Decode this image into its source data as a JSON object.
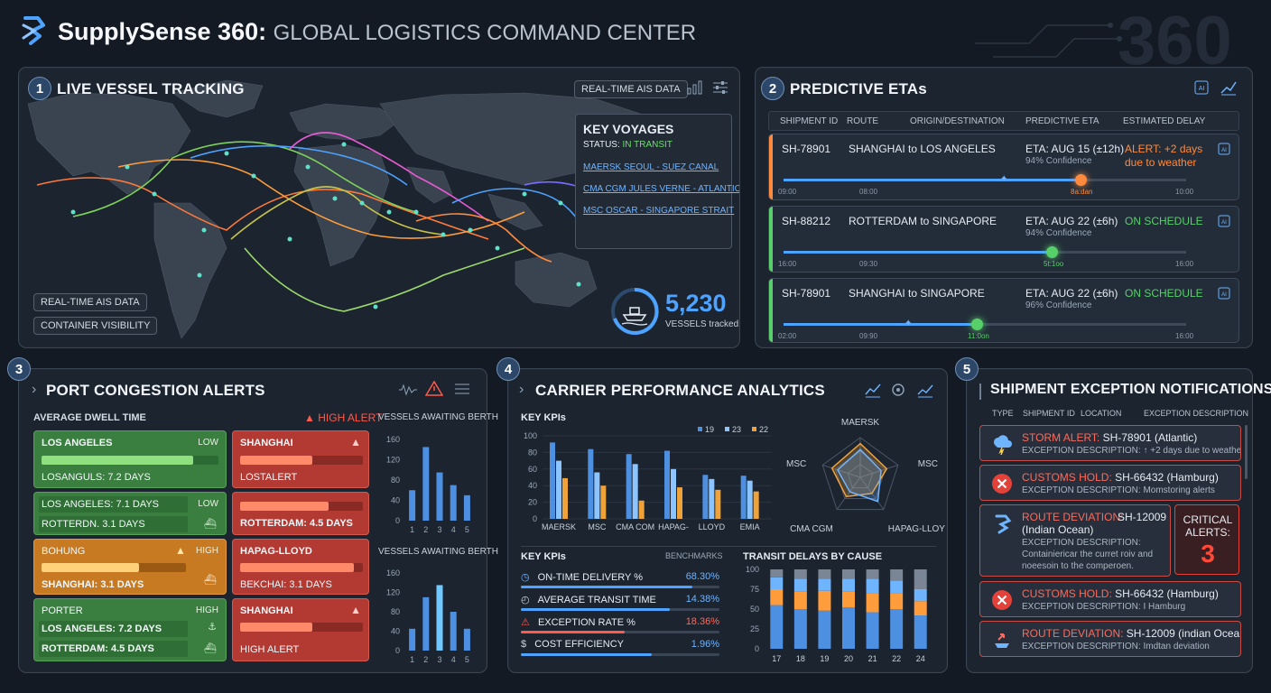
{
  "header": {
    "brand": "SupplySense 360:",
    "subtitle": "GLOBAL LOGISTICS COMMAND CENTER",
    "watermark": "360",
    "accent": "#4da3ff"
  },
  "vessel_tracking": {
    "number": "1",
    "title": "LIVE VESSEL TRACKING",
    "ais_tag": "REAL-TIME AIS DATA",
    "key_voyages": {
      "title": "KEY VOYAGES",
      "status_label": "STATUS:",
      "status_value": "IN TRANSIT",
      "voyages": [
        "MAERSK SEOUL - SUEZ CANAL",
        "CMA CGM JULES VERNE - ATLANTIC",
        "MSC OSCAR - SINGAPORE STRAIT"
      ]
    },
    "tags": [
      "REAL-TIME AIS DATA",
      "CONTAINER VISIBILITY"
    ],
    "vessels_count": "5,230",
    "vessels_label": "VESSELS tracked"
  },
  "predictive_etas": {
    "number": "2",
    "title": "PREDICTIVE ETAs",
    "columns": [
      "SHIPMENT ID",
      "ROUTE",
      "ORIGIN/DESTINATION",
      "PREDICTIVE ETA",
      "ESTIMATED DELAY"
    ],
    "rows": [
      {
        "id": "SH-78901",
        "route": "SHANGHAI to LOS ANGELES",
        "eta": "ETA: AUG 15 (±12h)",
        "confidence": "94% Confidence",
        "delay1": "ALERT: +2 days",
        "delay2": "due to weather",
        "status_color": "#ff8a3d",
        "ticks": [
          "09:00",
          "08:00",
          "8a:dan",
          "10:00"
        ],
        "progress": 0.62
      },
      {
        "id": "SH-88212",
        "route": "ROTTERDAM to SINGAPORE",
        "eta": "ETA: AUG 22 (±6h)",
        "confidence": "94% Confidence",
        "delay1": "ON SCHEDULE",
        "delay2": "",
        "status_color": "#58d06a",
        "ticks": [
          "16:00",
          "09:30",
          "5t:1oo",
          "16:00"
        ],
        "progress": 0.66
      },
      {
        "id": "SH-78901",
        "route": "SHANGHAI to SINGAPORE",
        "eta": "ETA: AUG 22 (±6h)",
        "confidence": "96% Confidence",
        "delay1": "ON SCHEDULE",
        "delay2": "",
        "status_color": "#58d06a",
        "ticks": [
          "02:00",
          "09:90",
          "11:0on",
          "16:00"
        ],
        "progress": 0.48
      }
    ]
  },
  "port_congestion": {
    "number": "3",
    "title": "PORT CONGESTION ALERTS",
    "dwell_label": "AVERAGE DWELL TIME",
    "high_alert": "HIGH ALERT",
    "tiles": [
      {
        "name": "LOS ANGELES",
        "level": "LOW",
        "line": "LOSANGULS: 7.2 DAYS",
        "kind": "g"
      },
      {
        "name": "SHANGHAI",
        "level": "",
        "line": "LOSTALERT",
        "kind": "r"
      },
      {
        "name": "LOS ANGELES: 7.1 DAYS",
        "level": "LOW",
        "line": "ROTTERDN. 3.1 DAYS",
        "kind": "g"
      },
      {
        "name": "",
        "level": "",
        "line": "ROTTERDAM: 4.5 DAYS",
        "kind": "r"
      },
      {
        "name": "BOHUNG",
        "level": "HIGH",
        "line": "SHANGHAI: 3.1 DAYS",
        "kind": "o"
      },
      {
        "name": "HAPAG-LLOYD",
        "level": "",
        "line": "BEKCHAI: 3.1 DAYS",
        "kind": "r"
      },
      {
        "name": "PORTER",
        "level": "HIGH",
        "line": "LOS ANGELES: 7.2 DAYS",
        "line2": "ROTTERDAM: 4.5 DAYS",
        "kind": "g"
      },
      {
        "name": "SHANGHAI",
        "level": "",
        "line": "HIGH ALERT",
        "kind": "r"
      }
    ],
    "berth_title": "VESSELS AWAITING BERTH",
    "berth_y_ticks": [
      "160",
      "120",
      "80",
      "40",
      "0"
    ],
    "berth_x": [
      "1",
      "2",
      "3",
      "4",
      "5"
    ]
  },
  "carrier_performance": {
    "number": "4",
    "title": "CARRIER PERFORMANCE ANALYTICS",
    "key_kpis": "KEY KPIs",
    "legend": [
      "19",
      "23",
      "22"
    ],
    "radar_labels": [
      "MAERSK",
      "MSC",
      "HAPAG-LLOYD",
      "CMA CGM",
      "MSC"
    ],
    "benchmarks": "BENCHMARKS",
    "kpis": [
      {
        "label": "ON-TIME DELIVERY %",
        "value": "68.30%",
        "color": "#4da3ff",
        "frac": 0.86
      },
      {
        "label": "AVERAGE TRANSIT TIME",
        "value": "14.38%",
        "color": "#4da3ff",
        "frac": 0.75
      },
      {
        "label": "EXCEPTION RATE %",
        "value": "18.36%",
        "color": "#ff5a4a",
        "frac": 0.52
      },
      {
        "label": "COST EFFICIENCY",
        "value": "1.96%",
        "color": "#4da3ff",
        "frac": 0.66
      }
    ],
    "delays_title": "TRANSIT DELAYS BY CAUSE",
    "delay_y_ticks": [
      "100",
      "75",
      "50",
      "25",
      "0"
    ],
    "delay_x": [
      "17",
      "18",
      "19",
      "20",
      "21",
      "22",
      "24"
    ]
  },
  "exceptions": {
    "number": "5",
    "title": "SHIPMENT EXCEPTION NOTIFICATIONS",
    "columns": [
      "TYPE",
      "SHIPMENT ID",
      "LOCATION",
      "EXCEPTION DESCRIPTION"
    ],
    "items": [
      {
        "type": "STORM ALERT:",
        "rest": "SH-78901 (Atlantic)",
        "rest2": "",
        "desc": "EXCEPTION DESCRIPTION: ↑ +2 days due to weather",
        "desc2": "",
        "icon": "storm"
      },
      {
        "type": "CUSTOMS HOLD:",
        "rest": "SH-66432 (Hamburg)",
        "rest2": "",
        "desc": "EXCEPTION DESCRIPTION: Momstoring alerts",
        "desc2": "",
        "icon": "x"
      },
      {
        "type": "ROUTE DEVIATION:",
        "rest": "SH-12009",
        "rest2": "(Indian Ocean)",
        "desc": "EXCEPTION DESCRIPTION:",
        "desc2": "Containiericar the curret roiv and",
        "desc3": "noeesoin to the comperoen.",
        "icon": "route"
      },
      {
        "type": "CUSTOMS HOLD:",
        "rest": "SH-66432 (Hamburg)",
        "rest2": "",
        "desc": "EXCEPTION DESCRIPTION: I Hamburg",
        "desc2": "",
        "icon": "x"
      },
      {
        "type": "ROUTE DEVIATION:",
        "rest": "SH-12009 (indian Ocean)",
        "rest2": "",
        "desc": "EXCEPTION DESCRIPTION: Imdtan deviation",
        "desc2": "",
        "icon": "ship"
      }
    ],
    "critical_label": "CRITICAL ALERTS:",
    "critical_count": "3"
  },
  "chart_data": [
    {
      "type": "bar",
      "title": "VESSELS AWAITING BERTH",
      "categories": [
        "1",
        "2",
        "3",
        "4",
        "5"
      ],
      "values": [
        60,
        145,
        95,
        70,
        50
      ],
      "ylim": [
        0,
        160
      ]
    },
    {
      "type": "bar",
      "title": "VESSELS AWAITING BERTH",
      "categories": [
        "1",
        "2",
        "3",
        "4",
        "5"
      ],
      "values": [
        45,
        110,
        135,
        80,
        45
      ],
      "ylim": [
        0,
        160
      ]
    },
    {
      "type": "bar",
      "title": "KEY KPIs",
      "categories": [
        "MAERSK",
        "MSC",
        "CMA COM",
        "HAPAG-",
        "LLOYD",
        "EMIA"
      ],
      "series": [
        {
          "name": "19",
          "values": [
            92,
            84,
            78,
            82,
            53,
            52
          ]
        },
        {
          "name": "23",
          "values": [
            70,
            56,
            66,
            60,
            48,
            46
          ]
        },
        {
          "name": "22",
          "values": [
            49,
            40,
            22,
            38,
            35,
            33
          ]
        }
      ],
      "ylim": [
        0,
        100
      ]
    },
    {
      "type": "bar",
      "title": "TRANSIT DELAYS BY CAUSE",
      "categories": [
        "17",
        "18",
        "19",
        "20",
        "21",
        "22",
        "24"
      ],
      "series": [
        {
          "name": "",
          "values": [
            55,
            50,
            48,
            52,
            46,
            50,
            42
          ]
        },
        {
          "name": "",
          "values": [
            20,
            22,
            25,
            20,
            24,
            20,
            18
          ]
        },
        {
          "name": "",
          "values": [
            15,
            16,
            15,
            16,
            18,
            16,
            15
          ]
        },
        {
          "name": "",
          "values": [
            10,
            12,
            12,
            12,
            12,
            14,
            25
          ]
        }
      ],
      "ylim": [
        0,
        100
      ]
    }
  ]
}
